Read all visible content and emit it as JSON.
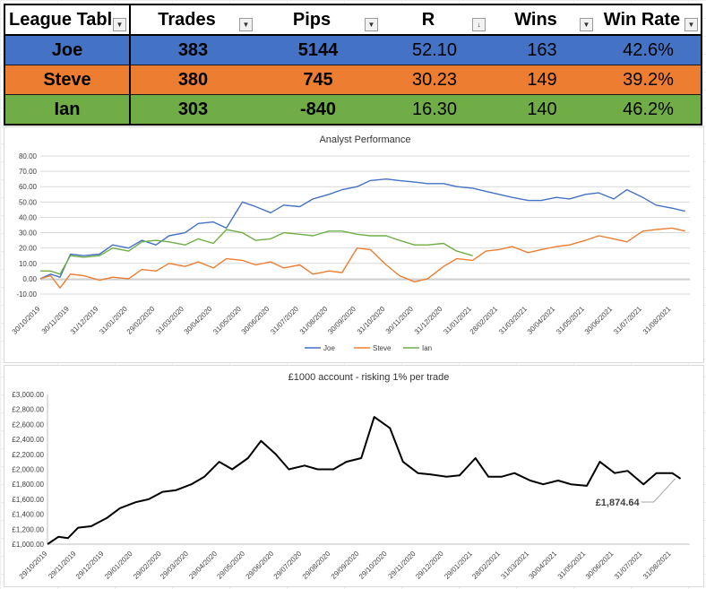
{
  "table": {
    "headers": [
      "League Tabl",
      "Trades",
      "Pips",
      "R",
      "Wins",
      "Win Rate"
    ],
    "rows": [
      {
        "name": "Joe",
        "trades": "383",
        "pips": "5144",
        "r": "52.10",
        "wins": "163",
        "win_rate": "42.6%",
        "color": "#4472c4"
      },
      {
        "name": "Steve",
        "trades": "380",
        "pips": "745",
        "r": "30.23",
        "wins": "149",
        "win_rate": "39.2%",
        "color": "#ed7d31"
      },
      {
        "name": "Ian",
        "trades": "303",
        "pips": "-840",
        "r": "16.30",
        "wins": "140",
        "win_rate": "46.2%",
        "color": "#70ad47"
      }
    ],
    "sort_indicator": "R"
  },
  "chart_data": [
    {
      "type": "line",
      "title": "Analyst Performance",
      "ylim": [
        -10,
        80
      ],
      "yticks": [
        "80.00",
        "70.00",
        "60.00",
        "50.00",
        "40.00",
        "30.00",
        "20.00",
        "10.00",
        "0.00",
        "-10.00"
      ],
      "x_tick_labels": [
        "30/10/2019",
        "30/11/2019",
        "31/12/2019",
        "31/01/2020",
        "29/02/2020",
        "31/03/2020",
        "30/04/2020",
        "31/05/2020",
        "30/06/2020",
        "31/07/2020",
        "31/08/2020",
        "30/09/2020",
        "31/10/2020",
        "30/11/2020",
        "31/12/2020",
        "31/01/2021",
        "28/02/2021",
        "31/03/2021",
        "30/04/2021",
        "31/05/2021",
        "30/06/2021",
        "31/07/2021",
        "31/08/2021"
      ],
      "grid": true,
      "legend_position": "bottom",
      "series": [
        {
          "name": "Joe",
          "color": "#4472c4",
          "x": [
            "2019-10-30",
            "2019-11-10",
            "2019-11-20",
            "2019-12-01",
            "2019-12-15",
            "2020-01-01",
            "2020-01-15",
            "2020-02-01",
            "2020-02-15",
            "2020-03-01",
            "2020-03-15",
            "2020-04-01",
            "2020-04-15",
            "2020-05-01",
            "2020-05-15",
            "2020-06-01",
            "2020-06-15",
            "2020-07-01",
            "2020-07-15",
            "2020-08-01",
            "2020-08-15",
            "2020-09-01",
            "2020-09-15",
            "2020-10-01",
            "2020-10-15",
            "2020-11-01",
            "2020-11-15",
            "2020-12-01",
            "2020-12-15",
            "2021-01-01",
            "2021-01-15",
            "2021-02-01",
            "2021-02-15",
            "2021-03-01",
            "2021-03-15",
            "2021-04-01",
            "2021-04-15",
            "2021-05-01",
            "2021-05-15",
            "2021-06-01",
            "2021-06-15",
            "2021-07-01",
            "2021-07-15",
            "2021-08-01",
            "2021-08-15",
            "2021-09-01",
            "2021-09-15"
          ],
          "y": [
            0,
            3,
            1,
            16,
            15,
            16,
            22,
            20,
            25,
            22,
            28,
            30,
            36,
            37,
            33,
            50,
            47,
            43,
            48,
            47,
            52,
            55,
            58,
            60,
            64,
            65,
            64,
            63,
            62,
            62,
            60,
            59,
            57,
            55,
            53,
            51,
            51,
            53,
            52,
            55,
            56,
            52,
            58,
            53,
            48,
            46,
            44
          ]
        },
        {
          "name": "Steve",
          "color": "#ed7d31",
          "x": [
            "2019-10-30",
            "2019-11-10",
            "2019-11-20",
            "2019-12-01",
            "2019-12-15",
            "2020-01-01",
            "2020-01-15",
            "2020-02-01",
            "2020-02-15",
            "2020-03-01",
            "2020-03-15",
            "2020-04-01",
            "2020-04-15",
            "2020-05-01",
            "2020-05-15",
            "2020-06-01",
            "2020-06-15",
            "2020-07-01",
            "2020-07-15",
            "2020-08-01",
            "2020-08-15",
            "2020-09-01",
            "2020-09-15",
            "2020-10-01",
            "2020-10-15",
            "2020-11-01",
            "2020-11-15",
            "2020-12-01",
            "2020-12-15",
            "2021-01-01",
            "2021-01-15",
            "2021-02-01",
            "2021-02-15",
            "2021-03-01",
            "2021-03-15",
            "2021-04-01",
            "2021-04-15",
            "2021-05-01",
            "2021-05-15",
            "2021-06-01",
            "2021-06-15",
            "2021-07-01",
            "2021-07-15",
            "2021-08-01",
            "2021-08-15",
            "2021-09-01",
            "2021-09-15"
          ],
          "y": [
            0,
            2,
            -6,
            3,
            2,
            -1,
            1,
            0,
            6,
            5,
            10,
            8,
            11,
            7,
            13,
            12,
            9,
            11,
            7,
            9,
            3,
            5,
            4,
            20,
            19,
            9,
            2,
            -2,
            0,
            8,
            13,
            12,
            18,
            19,
            21,
            17,
            19,
            21,
            22,
            25,
            28,
            26,
            24,
            31,
            32,
            33,
            31
          ]
        },
        {
          "name": "Ian",
          "color": "#70ad47",
          "x": [
            "2019-10-30",
            "2019-11-10",
            "2019-11-20",
            "2019-12-01",
            "2019-12-15",
            "2020-01-01",
            "2020-01-15",
            "2020-02-01",
            "2020-02-15",
            "2020-03-01",
            "2020-03-15",
            "2020-04-01",
            "2020-04-15",
            "2020-05-01",
            "2020-05-15",
            "2020-06-01",
            "2020-06-15",
            "2020-07-01",
            "2020-07-15",
            "2020-08-01",
            "2020-08-15",
            "2020-09-01",
            "2020-09-15",
            "2020-10-01",
            "2020-10-15",
            "2020-11-01",
            "2020-11-15",
            "2020-12-01",
            "2020-12-15",
            "2021-01-01",
            "2021-01-15",
            "2021-02-01"
          ],
          "y": [
            5,
            5,
            3,
            15,
            14,
            15,
            20,
            18,
            24,
            25,
            24,
            22,
            26,
            23,
            32,
            30,
            25,
            26,
            30,
            29,
            28,
            31,
            31,
            29,
            28,
            28,
            25,
            22,
            22,
            23,
            18,
            15
          ]
        }
      ]
    },
    {
      "type": "line",
      "title": "£1000 account - risking 1% per trade",
      "ylim": [
        1000,
        3000
      ],
      "yticks": [
        "£3,000.00",
        "£2,800.00",
        "£2,600.00",
        "£2,400.00",
        "£2,200.00",
        "£2,000.00",
        "£1,800.00",
        "£1,600.00",
        "£1,400.00",
        "£1,200.00",
        "£1,000.00"
      ],
      "x_tick_labels": [
        "29/10/2019",
        "29/11/2019",
        "29/12/2019",
        "29/01/2020",
        "29/02/2020",
        "29/03/2020",
        "29/04/2020",
        "29/05/2020",
        "29/06/2020",
        "29/07/2020",
        "29/08/2020",
        "29/09/2020",
        "29/10/2020",
        "29/11/2020",
        "29/12/2020",
        "29/01/2021",
        "28/02/2021",
        "31/03/2021",
        "30/04/2021",
        "31/05/2021",
        "30/06/2021",
        "31/07/2021",
        "31/08/2021"
      ],
      "grid": false,
      "annotation": "£1,874.64",
      "series": [
        {
          "color": "#000000",
          "x": [
            "2019-10-29",
            "2019-11-10",
            "2019-11-20",
            "2019-12-01",
            "2019-12-15",
            "2020-01-01",
            "2020-01-15",
            "2020-02-01",
            "2020-02-15",
            "2020-03-01",
            "2020-03-15",
            "2020-04-01",
            "2020-04-15",
            "2020-05-01",
            "2020-05-15",
            "2020-06-01",
            "2020-06-15",
            "2020-07-01",
            "2020-07-15",
            "2020-08-01",
            "2020-08-15",
            "2020-09-01",
            "2020-09-15",
            "2020-10-01",
            "2020-10-15",
            "2020-11-01",
            "2020-11-15",
            "2020-12-01",
            "2020-12-15",
            "2021-01-01",
            "2021-01-15",
            "2021-02-01",
            "2021-02-15",
            "2021-03-01",
            "2021-03-15",
            "2021-04-01",
            "2021-04-15",
            "2021-05-01",
            "2021-05-15",
            "2021-06-01",
            "2021-06-15",
            "2021-07-01",
            "2021-07-15",
            "2021-08-01",
            "2021-08-15",
            "2021-09-01",
            "2021-09-10"
          ],
          "y": [
            1000,
            1100,
            1080,
            1220,
            1240,
            1350,
            1480,
            1560,
            1600,
            1700,
            1720,
            1800,
            1900,
            2100,
            2000,
            2150,
            2380,
            2200,
            2000,
            2050,
            2000,
            2000,
            2100,
            2150,
            2700,
            2550,
            2100,
            1950,
            1930,
            1900,
            1920,
            2150,
            1900,
            1900,
            1950,
            1850,
            1800,
            1850,
            1800,
            1780,
            2100,
            1950,
            1980,
            1800,
            1950,
            1950,
            1875
          ]
        }
      ]
    }
  ],
  "legend": [
    "Joe",
    "Steve",
    "Ian"
  ]
}
